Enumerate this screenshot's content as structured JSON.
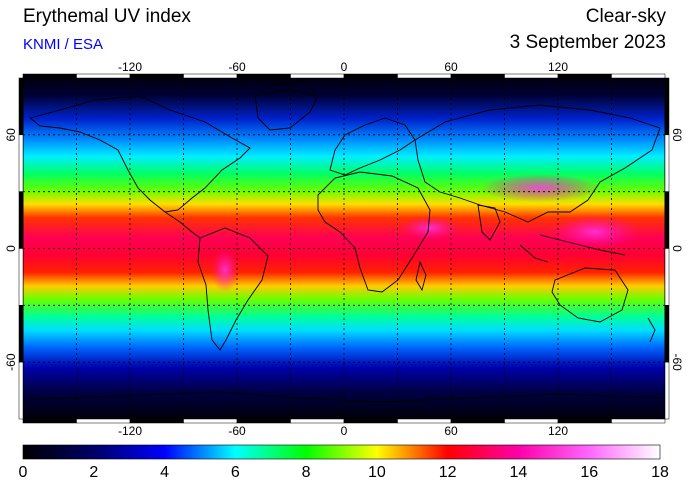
{
  "header": {
    "title": "Erythemal UV index",
    "credit": "KNMI / ESA",
    "mode": "Clear-sky",
    "date": "3 September 2023"
  },
  "map": {
    "lon_ticks": [
      "-120",
      "-60",
      "0",
      "60",
      "120"
    ],
    "lat_ticks": [
      "60",
      "0",
      "-60"
    ],
    "lon_range": [
      -180,
      180
    ],
    "lat_range": [
      -90,
      90
    ],
    "grid_spacing_lon": 30,
    "grid_spacing_lat": 30
  },
  "colorbar": {
    "labels": [
      "0",
      "2",
      "4",
      "6",
      "8",
      "10",
      "12",
      "14",
      "16",
      "18"
    ],
    "range": [
      0,
      18
    ],
    "colors": [
      "#000000",
      "#000066",
      "#0000ff",
      "#00ffff",
      "#00ff00",
      "#ffff00",
      "#ff0000",
      "#ff00aa",
      "#ff66ff",
      "#ffffff"
    ]
  }
}
